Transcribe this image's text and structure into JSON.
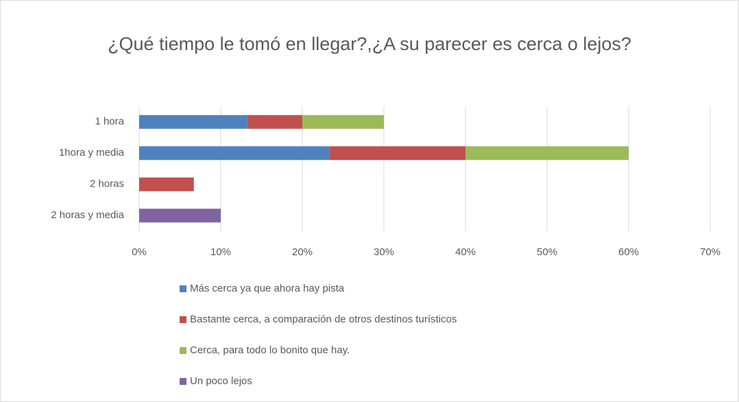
{
  "chart_data": {
    "type": "stacked_bar_horizontal",
    "title": "¿Qué tiempo le tomó en llegar?,¿A su parecer es cerca o lejos?",
    "categories": [
      "1 hora",
      "1hora y media",
      "2 horas",
      "2 horas y media"
    ],
    "series": [
      {
        "name": "Más cerca ya que ahora hay pista",
        "color": "#4f81bd",
        "values": [
          13.3,
          23.3,
          null,
          null
        ]
      },
      {
        "name": "Bastante cerca, a comparación de otros destinos turísticos",
        "color": "#c0504d",
        "values": [
          6.7,
          16.7,
          6.7,
          null
        ]
      },
      {
        "name": "Cerca, para todo lo bonito que hay.",
        "color": "#9bbb59",
        "values": [
          10,
          20,
          null,
          null
        ]
      },
      {
        "name": "Un poco lejos",
        "color": "#8064a2",
        "values": [
          null,
          null,
          null,
          10
        ]
      }
    ],
    "xlim": [
      0,
      70
    ],
    "xticks": [
      {
        "value": 0,
        "label": "0%"
      },
      {
        "value": 10,
        "label": "10%"
      },
      {
        "value": 20,
        "label": "20%"
      },
      {
        "value": 30,
        "label": "30%"
      },
      {
        "value": 40,
        "label": "40%"
      },
      {
        "value": 50,
        "label": "50%"
      },
      {
        "value": 60,
        "label": "60%"
      },
      {
        "value": 70,
        "label": "70%"
      }
    ],
    "grid": true,
    "legend": "bottom"
  }
}
